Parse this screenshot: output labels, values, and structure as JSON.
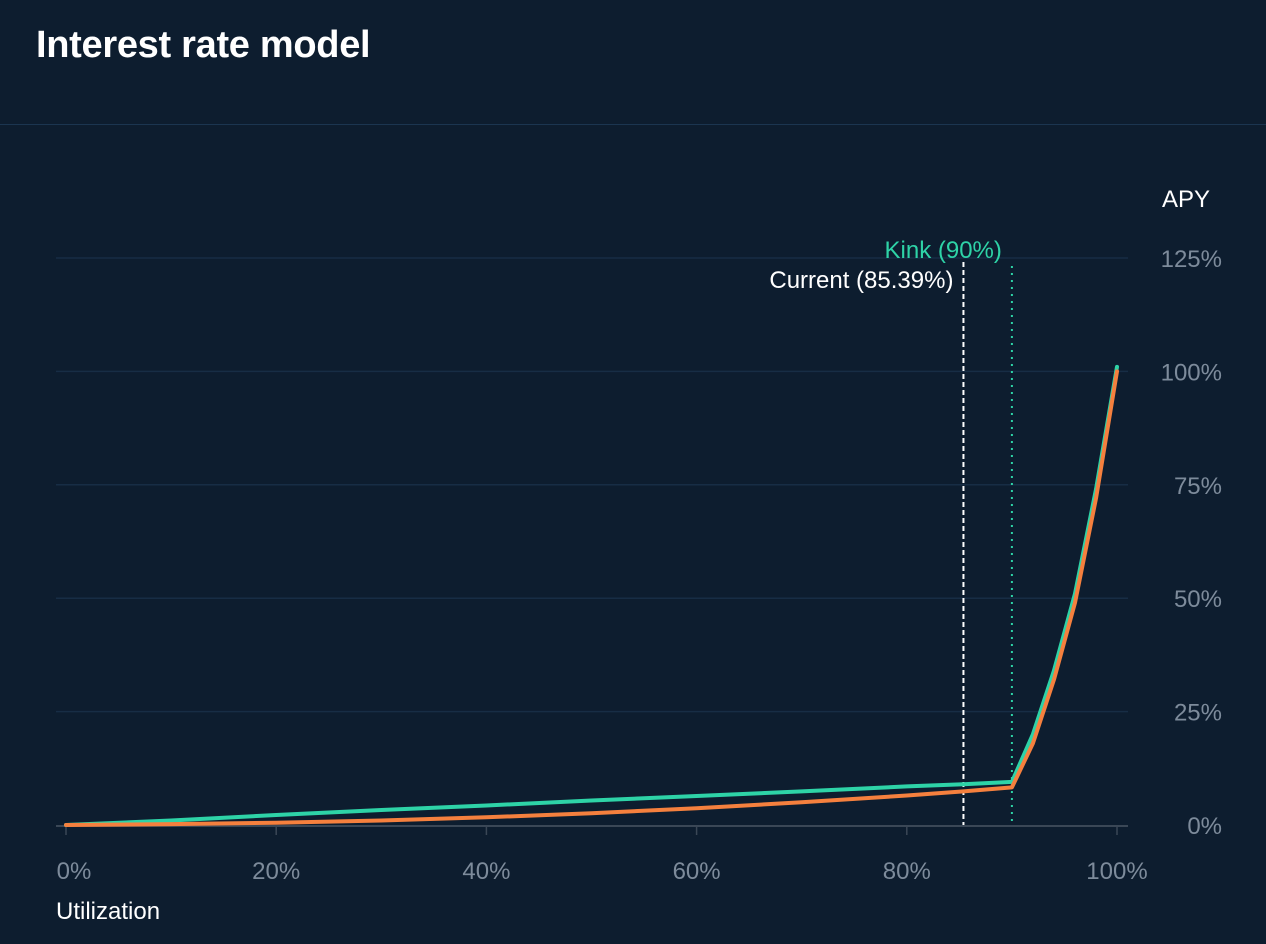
{
  "header": {
    "title": "Interest rate model"
  },
  "chart_data": {
    "type": "line",
    "xlabel": "Utilization",
    "ylabel": "APY",
    "xlim": [
      0,
      100
    ],
    "ylim": [
      0,
      125
    ],
    "x_ticks": [
      0,
      20,
      40,
      60,
      80,
      100
    ],
    "x_tick_labels": [
      "0%",
      "20%",
      "40%",
      "60%",
      "80%",
      "100%"
    ],
    "y_ticks": [
      0,
      25,
      50,
      75,
      100,
      125
    ],
    "y_tick_labels": [
      "0%",
      "25%",
      "50%",
      "75%",
      "100%",
      "125%"
    ],
    "grid": "horizontal",
    "series": [
      {
        "color": "#2ed3a7",
        "x": [
          0,
          10,
          20,
          30,
          40,
          50,
          60,
          70,
          80,
          85.39,
          90,
          92,
          94,
          96,
          98,
          100
        ],
        "y": [
          0,
          1.0,
          2.2,
          3.3,
          4.3,
          5.4,
          6.4,
          7.4,
          8.5,
          9.0,
          9.5,
          20,
          34,
          51,
          74,
          101
        ]
      },
      {
        "color": "#f5803e",
        "x": [
          0,
          10,
          20,
          30,
          40,
          50,
          60,
          70,
          80,
          85.39,
          90,
          92,
          94,
          96,
          98,
          100
        ],
        "y": [
          0,
          0.2,
          0.5,
          1.0,
          1.7,
          2.6,
          3.7,
          5.0,
          6.5,
          7.4,
          8.3,
          18,
          32,
          49,
          72,
          100
        ]
      }
    ],
    "annotations": [
      {
        "label": "Current (85.39%)",
        "x": 85.39,
        "color": "#ffffff",
        "style": "dashed"
      },
      {
        "label": "Kink (90%)",
        "x": 90,
        "color": "#2ed3a7",
        "style": "dotted"
      }
    ]
  }
}
